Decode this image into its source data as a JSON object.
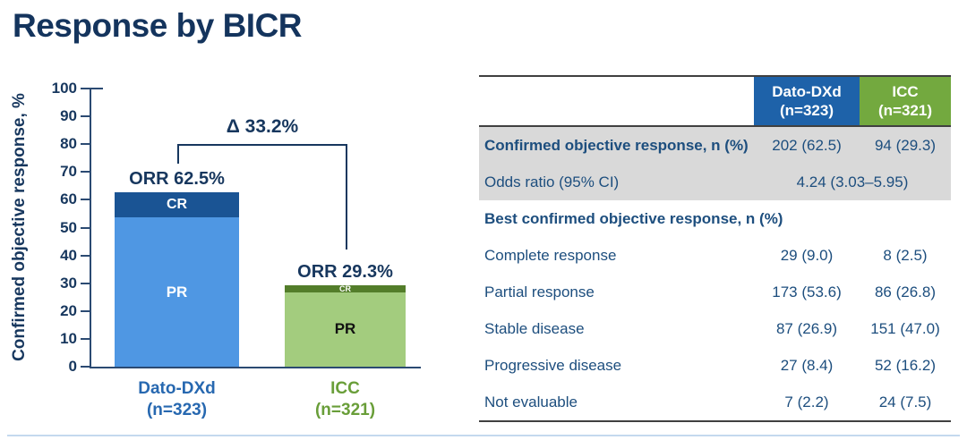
{
  "title": "Response by BICR",
  "colors": {
    "title_navy": "#14345d",
    "chart_navy": "#17375e",
    "axis": "#2b4a72",
    "dato_cr": "#1a5494",
    "dato_pr": "#4f97e3",
    "icc_cr": "#537d2a",
    "icc_pr": "#a3cc7e",
    "header_blue": "#1e62a9",
    "header_green": "#73a93f",
    "xlabel_blue": "#2768b0",
    "xlabel_green": "#699e39",
    "table_text": "#1d4e7e",
    "shaded_row": "#d9d9d9",
    "table_rule": "#404040",
    "bottom_divider": "#c4d9ee"
  },
  "chart_data": {
    "type": "bar",
    "stacked": true,
    "ylabel": "Confirmed objective response, %",
    "ylim": [
      0,
      100
    ],
    "ytick_step": 10,
    "grid": false,
    "delta_annotation": "Δ 33.2%",
    "groups": [
      {
        "name": "Dato-DXd",
        "n_label": "(n=323)",
        "orr_label": "ORR 62.5%",
        "label_color": "#2768b0",
        "segments": [
          {
            "name": "PR",
            "value": 53.6,
            "color": "#4f97e3",
            "text_color": "#ffffff",
            "label_size": 17
          },
          {
            "name": "CR",
            "value": 9.0,
            "color": "#1a5494",
            "text_color": "#ffffff",
            "label_size": 16
          }
        ]
      },
      {
        "name": "ICC",
        "n_label": "(n=321)",
        "orr_label": "ORR 29.3%",
        "label_color": "#699e39",
        "segments": [
          {
            "name": "PR",
            "value": 26.8,
            "color": "#a3cc7e",
            "text_color": "#111111",
            "label_size": 17
          },
          {
            "name": "CR",
            "value": 2.5,
            "color": "#537d2a",
            "text_color": "#ffffff",
            "label_size": 9
          }
        ]
      }
    ]
  },
  "table": {
    "columns": [
      {
        "line1": "Dato-DXd",
        "line2": "(n=323)"
      },
      {
        "line1": "ICC",
        "line2": "(n=321)"
      }
    ],
    "rows": [
      {
        "label": "Confirmed objective response, n (%)",
        "bold": true,
        "shaded": true,
        "values": [
          "202 (62.5)",
          "94 (29.3)"
        ]
      },
      {
        "label": "Odds ratio (95% CI)",
        "bold": false,
        "shaded": true,
        "span_value": "4.24 (3.03–5.95)"
      },
      {
        "label": "Best confirmed objective response, n (%)",
        "bold": true,
        "section": true
      },
      {
        "label": "Complete response",
        "values": [
          "29 (9.0)",
          "8 (2.5)"
        ]
      },
      {
        "label": "Partial response",
        "values": [
          "173 (53.6)",
          "86 (26.8)"
        ]
      },
      {
        "label": "Stable disease",
        "values": [
          "87 (26.9)",
          "151 (47.0)"
        ]
      },
      {
        "label": "Progressive disease",
        "values": [
          "27 (8.4)",
          "52 (16.2)"
        ]
      },
      {
        "label": "Not evaluable",
        "values": [
          "7 (2.2)",
          "24 (7.5)"
        ]
      }
    ]
  }
}
